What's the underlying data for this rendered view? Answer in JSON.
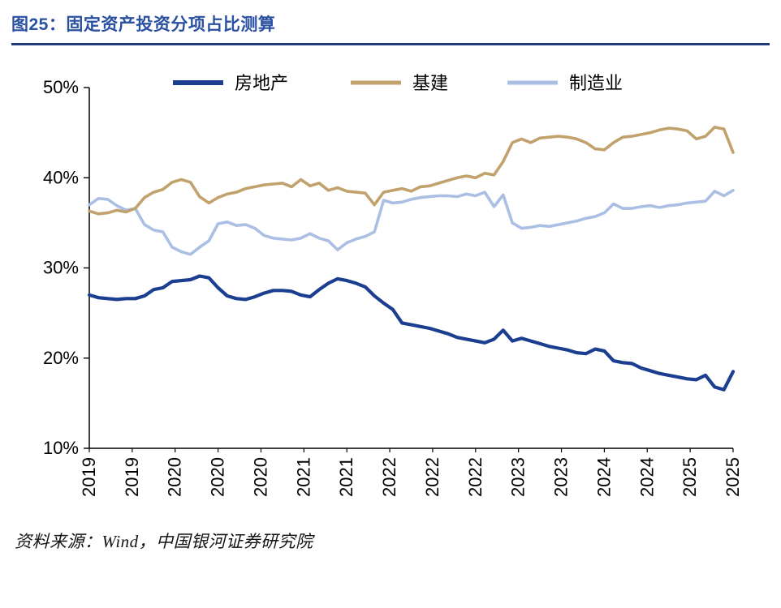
{
  "header": {
    "figure_title": "图25：固定资产投资分项占比测算"
  },
  "footer": {
    "source_note": "资料来源：Wind，中国银河证券研究院"
  },
  "colors": {
    "title_blue": "#2a50a1",
    "rule_blue": "#1f3a7d",
    "axis": "#000000",
    "real_estate": "#1b3e91",
    "infrastructure": "#c1a26d",
    "manufacturing": "#aabfe3"
  },
  "chart_data": {
    "type": "line",
    "title": "固定资产投资分项占比测算",
    "xlabel": "",
    "ylabel": "",
    "ylim": [
      10,
      50
    ],
    "yticks": [
      10,
      20,
      30,
      40,
      50
    ],
    "ytick_format": "percent",
    "grid": false,
    "legend_position": "top",
    "x_tick_labels": [
      "2019",
      "2019",
      "2020",
      "2020",
      "2020",
      "2021",
      "2021",
      "2022",
      "2022",
      "2022",
      "2023",
      "2023",
      "2024",
      "2024",
      "2025",
      "2025"
    ],
    "x_unit": "month (2019-02 to 2025-06, cumulative shares)",
    "series": [
      {
        "name": "房地产",
        "color": "#1b3e91",
        "line_width": 4.2,
        "values": [
          27.0,
          26.7,
          26.6,
          26.5,
          26.6,
          26.6,
          26.9,
          27.6,
          27.8,
          28.5,
          28.6,
          28.7,
          29.1,
          28.9,
          27.8,
          26.9,
          26.6,
          26.5,
          26.8,
          27.2,
          27.5,
          27.5,
          27.4,
          27.0,
          26.8,
          27.6,
          28.3,
          28.8,
          28.6,
          28.3,
          27.9,
          26.9,
          26.1,
          25.4,
          23.9,
          23.7,
          23.5,
          23.3,
          23.0,
          22.7,
          22.3,
          22.1,
          21.9,
          21.7,
          22.1,
          23.1,
          21.9,
          22.2,
          21.9,
          21.6,
          21.3,
          21.1,
          20.9,
          20.6,
          20.5,
          21.0,
          20.8,
          19.7,
          19.5,
          19.4,
          18.9,
          18.6,
          18.3,
          18.1,
          17.9,
          17.7,
          17.6,
          18.1,
          16.8,
          16.5,
          18.5
        ]
      },
      {
        "name": "基建",
        "color": "#c1a26d",
        "line_width": 3.6,
        "values": [
          36.3,
          36.0,
          36.1,
          36.4,
          36.2,
          36.6,
          37.8,
          38.4,
          38.7,
          39.5,
          39.8,
          39.5,
          37.9,
          37.2,
          37.8,
          38.2,
          38.4,
          38.8,
          39.0,
          39.2,
          39.3,
          39.4,
          39.0,
          39.8,
          39.1,
          39.4,
          38.6,
          38.9,
          38.5,
          38.4,
          38.3,
          37.0,
          38.4,
          38.6,
          38.8,
          38.5,
          39.0,
          39.1,
          39.4,
          39.7,
          40.0,
          40.2,
          40.0,
          40.5,
          40.3,
          41.8,
          43.9,
          44.3,
          43.9,
          44.4,
          44.5,
          44.6,
          44.5,
          44.3,
          43.9,
          43.2,
          43.1,
          43.9,
          44.5,
          44.6,
          44.8,
          45.0,
          45.3,
          45.5,
          45.4,
          45.2,
          44.3,
          44.6,
          45.6,
          45.4,
          42.8
        ]
      },
      {
        "name": "制造业",
        "color": "#aabfe3",
        "line_width": 3.6,
        "values": [
          37.0,
          37.7,
          37.6,
          36.9,
          36.4,
          36.6,
          34.8,
          34.2,
          34.0,
          32.3,
          31.8,
          31.5,
          32.3,
          33.0,
          34.9,
          35.1,
          34.7,
          34.8,
          34.4,
          33.6,
          33.3,
          33.2,
          33.1,
          33.3,
          33.8,
          33.3,
          33.0,
          32.0,
          32.8,
          33.2,
          33.5,
          34.0,
          37.5,
          37.2,
          37.3,
          37.6,
          37.8,
          37.9,
          38.0,
          38.0,
          37.9,
          38.2,
          38.0,
          38.4,
          36.8,
          38.1,
          35.0,
          34.4,
          34.5,
          34.7,
          34.6,
          34.8,
          35.0,
          35.2,
          35.5,
          35.7,
          36.1,
          37.1,
          36.6,
          36.6,
          36.8,
          36.9,
          36.7,
          36.9,
          37.0,
          37.2,
          37.3,
          37.4,
          38.5,
          38.0,
          38.6
        ]
      }
    ]
  }
}
